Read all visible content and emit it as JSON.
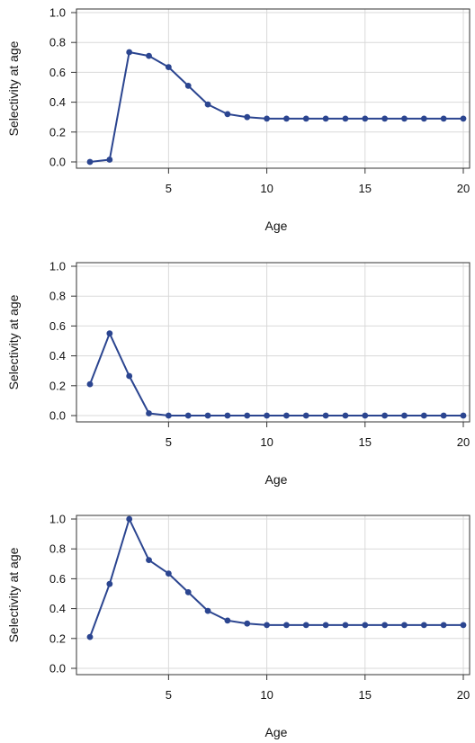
{
  "chart_data": [
    {
      "type": "line",
      "xlabel": "Age",
      "ylabel": "Selectivity at age",
      "xlim": [
        1,
        20
      ],
      "ylim": [
        0,
        1
      ],
      "xticks": [
        5,
        10,
        15,
        20
      ],
      "yticks": [
        0.0,
        0.2,
        0.4,
        0.6,
        0.8,
        1.0
      ],
      "ytick_labels": [
        "0.0",
        "0.2",
        "0.4",
        "0.6",
        "0.8",
        "1.0"
      ],
      "grid": true,
      "color": "#2b4590",
      "x": [
        1,
        2,
        3,
        4,
        5,
        6,
        7,
        8,
        9,
        10,
        11,
        12,
        13,
        14,
        15,
        16,
        17,
        18,
        19,
        20
      ],
      "values": [
        0.0,
        0.015,
        0.735,
        0.71,
        0.635,
        0.51,
        0.385,
        0.32,
        0.3,
        0.29,
        0.29,
        0.29,
        0.29,
        0.29,
        0.29,
        0.29,
        0.29,
        0.29,
        0.29,
        0.29
      ]
    },
    {
      "type": "line",
      "xlabel": "Age",
      "ylabel": "Selectivity at age",
      "xlim": [
        1,
        20
      ],
      "ylim": [
        0,
        1
      ],
      "xticks": [
        5,
        10,
        15,
        20
      ],
      "yticks": [
        0.0,
        0.2,
        0.4,
        0.6,
        0.8,
        1.0
      ],
      "ytick_labels": [
        "0.0",
        "0.2",
        "0.4",
        "0.6",
        "0.8",
        "1.0"
      ],
      "grid": true,
      "color": "#2b4590",
      "x": [
        1,
        2,
        3,
        4,
        5,
        6,
        7,
        8,
        9,
        10,
        11,
        12,
        13,
        14,
        15,
        16,
        17,
        18,
        19,
        20
      ],
      "values": [
        0.21,
        0.55,
        0.265,
        0.015,
        0.0,
        0.0,
        0.0,
        0.0,
        0.0,
        0.0,
        0.0,
        0.0,
        0.0,
        0.0,
        0.0,
        0.0,
        0.0,
        0.0,
        0.0,
        0.0
      ]
    },
    {
      "type": "line",
      "xlabel": "Age",
      "ylabel": "Selectivity at age",
      "xlim": [
        1,
        20
      ],
      "ylim": [
        0,
        1
      ],
      "xticks": [
        5,
        10,
        15,
        20
      ],
      "yticks": [
        0.0,
        0.2,
        0.4,
        0.6,
        0.8,
        1.0
      ],
      "ytick_labels": [
        "0.0",
        "0.2",
        "0.4",
        "0.6",
        "0.8",
        "1.0"
      ],
      "grid": true,
      "color": "#2b4590",
      "x": [
        1,
        2,
        3,
        4,
        5,
        6,
        7,
        8,
        9,
        10,
        11,
        12,
        13,
        14,
        15,
        16,
        17,
        18,
        19,
        20
      ],
      "values": [
        0.21,
        0.565,
        1.0,
        0.725,
        0.635,
        0.51,
        0.385,
        0.32,
        0.3,
        0.29,
        0.29,
        0.29,
        0.29,
        0.29,
        0.29,
        0.29,
        0.29,
        0.29,
        0.29,
        0.29
      ]
    }
  ]
}
